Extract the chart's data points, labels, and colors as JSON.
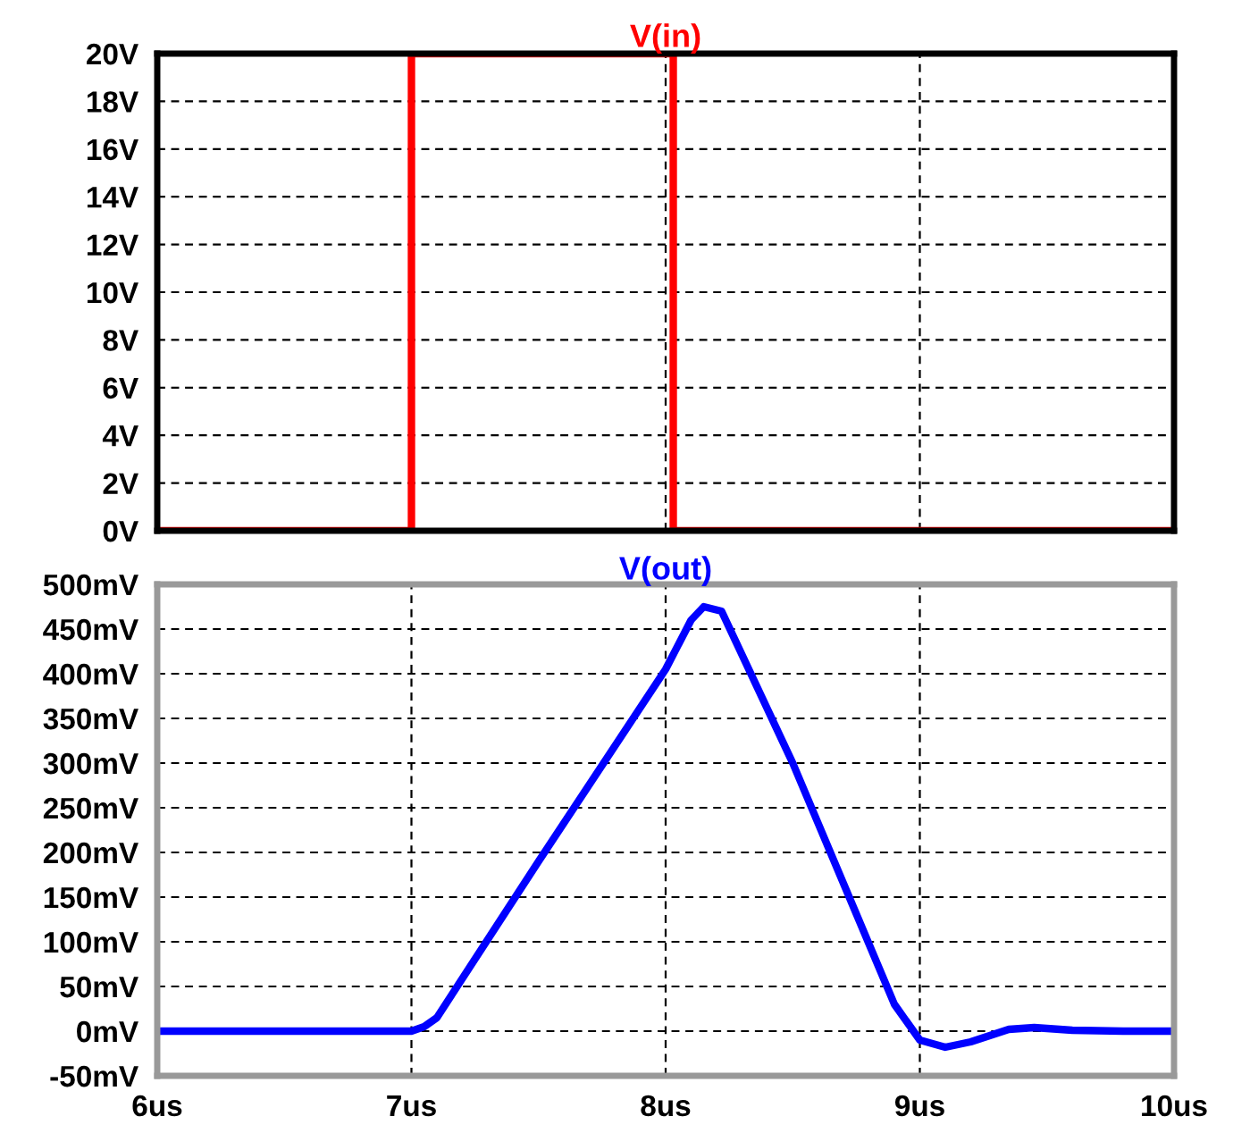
{
  "chart_data": [
    {
      "type": "line",
      "title": "V(in)",
      "xlim": [
        6,
        10
      ],
      "xticks": [
        6,
        7,
        8,
        9,
        10
      ],
      "ylim": [
        0,
        20
      ],
      "tick_labels": "y",
      "grid": true,
      "line_style": "solid",
      "yticks": [
        {
          "value": 0,
          "label": "0V"
        },
        {
          "value": 2,
          "label": "2V"
        },
        {
          "value": 4,
          "label": "4V"
        },
        {
          "value": 6,
          "label": "6V"
        },
        {
          "value": 8,
          "label": "8V"
        },
        {
          "value": 10,
          "label": "10V"
        },
        {
          "value": 12,
          "label": "12V"
        },
        {
          "value": 14,
          "label": "14V"
        },
        {
          "value": 16,
          "label": "16V"
        },
        {
          "value": 18,
          "label": "18V"
        },
        {
          "value": 20,
          "label": "20V"
        }
      ],
      "series": [
        {
          "color": "#ff0000",
          "x": [
            6,
            7,
            7,
            8.03,
            8.03,
            10
          ],
          "values": [
            0,
            0,
            20,
            20,
            0,
            0
          ]
        }
      ]
    },
    {
      "type": "line",
      "title": "V(out)",
      "xlim": [
        6,
        10
      ],
      "ylim": [
        -50,
        500
      ],
      "grid": true,
      "line_style": "solid",
      "xticks": [
        {
          "value": 6,
          "label": "6us"
        },
        {
          "value": 7,
          "label": "7us"
        },
        {
          "value": 8,
          "label": "8us"
        },
        {
          "value": 9,
          "label": "9us"
        },
        {
          "value": 10,
          "label": "10us"
        }
      ],
      "yticks": [
        {
          "value": -50,
          "label": "-50mV"
        },
        {
          "value": 0,
          "label": "0mV"
        },
        {
          "value": 50,
          "label": "50mV"
        },
        {
          "value": 100,
          "label": "100mV"
        },
        {
          "value": 150,
          "label": "150mV"
        },
        {
          "value": 200,
          "label": "200mV"
        },
        {
          "value": 250,
          "label": "250mV"
        },
        {
          "value": 300,
          "label": "300mV"
        },
        {
          "value": 350,
          "label": "350mV"
        },
        {
          "value": 400,
          "label": "400mV"
        },
        {
          "value": 450,
          "label": "450mV"
        },
        {
          "value": 500,
          "label": "500mV"
        }
      ],
      "series": [
        {
          "color": "#0000ff",
          "x": [
            6,
            7,
            7.05,
            7.1,
            7.5,
            8,
            8.1,
            8.15,
            8.22,
            8.5,
            8.9,
            9.0,
            9.1,
            9.2,
            9.35,
            9.45,
            9.6,
            9.8,
            10
          ],
          "values": [
            0,
            0,
            5,
            15,
            190,
            405,
            460,
            475,
            470,
            300,
            30,
            -10,
            -18,
            -12,
            2,
            4,
            1,
            0,
            0
          ]
        }
      ]
    }
  ]
}
